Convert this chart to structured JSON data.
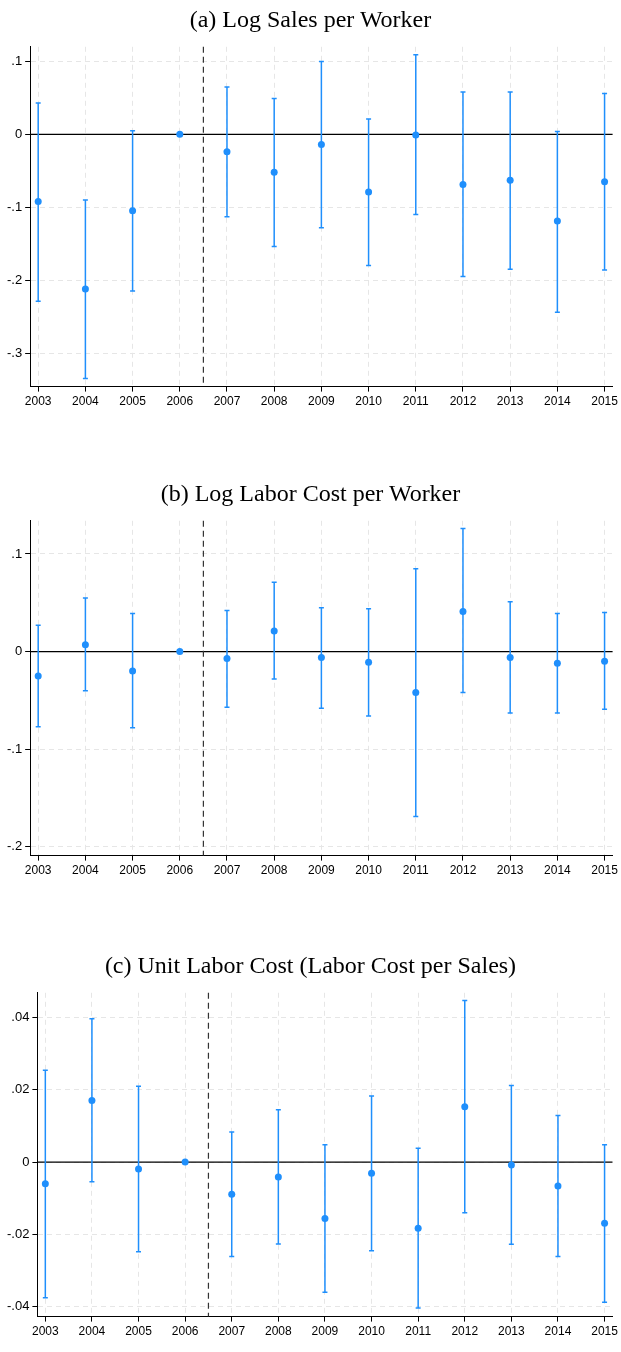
{
  "chart_data": [
    {
      "type": "scatter",
      "title": "(a) Log Sales per Worker",
      "x": [
        2003,
        2004,
        2005,
        2006,
        2007,
        2008,
        2009,
        2010,
        2011,
        2012,
        2013,
        2014,
        2015
      ],
      "series": [
        {
          "color": "#1f8ffc",
          "values": [
            -0.092,
            -0.212,
            -0.105,
            0,
            -0.024,
            -0.052,
            -0.014,
            -0.079,
            -0.001,
            -0.069,
            -0.063,
            -0.119,
            -0.065
          ],
          "errors": [
            [
              -0.229,
              0.043
            ],
            [
              -0.335,
              -0.09
            ],
            [
              -0.215,
              0.005
            ],
            null,
            [
              -0.113,
              0.065
            ],
            [
              -0.154,
              0.049
            ],
            [
              -0.128,
              0.1
            ],
            [
              -0.18,
              0.021
            ],
            [
              -0.11,
              0.109
            ],
            [
              -0.195,
              0.058
            ],
            [
              -0.185,
              0.058
            ],
            [
              -0.244,
              0.004
            ],
            [
              -0.186,
              0.056
            ]
          ]
        }
      ],
      "xlim": [
        2002.83,
        2015.17
      ],
      "xticks": [
        2003,
        2004,
        2005,
        2006,
        2007,
        2008,
        2009,
        2010,
        2011,
        2012,
        2013,
        2014,
        2015
      ],
      "ylim": [
        -0.346,
        0.12
      ],
      "yticks": [
        {
          "value": -0.3,
          "label": "-.3"
        },
        {
          "value": -0.2,
          "label": "-.2"
        },
        {
          "value": -0.1,
          "label": "-.1"
        },
        {
          "value": 0,
          "label": "0"
        },
        {
          "value": 0.1,
          "label": ".1"
        }
      ],
      "ref_lines": [
        {
          "axis": "y",
          "value": 0,
          "color": "#000000",
          "line_style": "solid"
        },
        {
          "axis": "x",
          "value": 2006.5,
          "color": "#333333",
          "line_style": "dashed"
        }
      ],
      "grid": true,
      "marker": "circle"
    },
    {
      "type": "scatter",
      "title": "(b) Log Labor Cost per Worker",
      "x": [
        2003,
        2004,
        2005,
        2006,
        2007,
        2008,
        2009,
        2010,
        2011,
        2012,
        2013,
        2014,
        2015
      ],
      "series": [
        {
          "color": "#1f8ffc",
          "values": [
            -0.025,
            0.007,
            -0.02,
            0,
            -0.007,
            0.021,
            -0.006,
            -0.011,
            -0.042,
            0.041,
            -0.006,
            -0.012,
            -0.01
          ],
          "errors": [
            [
              -0.077,
              0.027
            ],
            [
              -0.04,
              0.055
            ],
            [
              -0.078,
              0.039
            ],
            null,
            [
              -0.057,
              0.042
            ],
            [
              -0.028,
              0.071
            ],
            [
              -0.058,
              0.045
            ],
            [
              -0.066,
              0.044
            ],
            [
              -0.169,
              0.085
            ],
            [
              -0.042,
              0.126
            ],
            [
              -0.063,
              0.051
            ],
            [
              -0.063,
              0.039
            ],
            [
              -0.059,
              0.04
            ]
          ]
        }
      ],
      "xlim": [
        2002.83,
        2015.17
      ],
      "xticks": [
        2003,
        2004,
        2005,
        2006,
        2007,
        2008,
        2009,
        2010,
        2011,
        2012,
        2013,
        2014,
        2015
      ],
      "ylim": [
        -0.209,
        0.134
      ],
      "yticks": [
        {
          "value": -0.2,
          "label": "-.2"
        },
        {
          "value": -0.1,
          "label": "-.1"
        },
        {
          "value": 0,
          "label": "0"
        },
        {
          "value": 0.1,
          "label": ".1"
        }
      ],
      "ref_lines": [
        {
          "axis": "y",
          "value": 0,
          "color": "#000000",
          "line_style": "solid"
        },
        {
          "axis": "x",
          "value": 2006.5,
          "color": "#333333",
          "line_style": "dashed"
        }
      ],
      "grid": true,
      "marker": "circle"
    },
    {
      "type": "scatter",
      "title": "(c) Unit Labor Cost (Labor Cost per Sales)",
      "x": [
        2003,
        2004,
        2005,
        2006,
        2007,
        2008,
        2009,
        2010,
        2011,
        2012,
        2013,
        2014,
        2015
      ],
      "series": [
        {
          "color": "#1f8ffc",
          "values": [
            -0.006,
            0.017,
            -0.0019,
            0,
            -0.0089,
            -0.0041,
            -0.0156,
            -0.0031,
            -0.0183,
            0.0153,
            -0.0008,
            -0.0066,
            -0.0169
          ],
          "errors": [
            [
              -0.0375,
              0.0254
            ],
            [
              -0.0054,
              0.0396
            ],
            [
              -0.0248,
              0.021
            ],
            null,
            [
              -0.0261,
              0.0083
            ],
            [
              -0.0226,
              0.0145
            ],
            [
              -0.036,
              0.0048
            ],
            [
              -0.0245,
              0.0183
            ],
            [
              -0.0403,
              0.0038
            ],
            [
              -0.014,
              0.0447
            ],
            [
              -0.0227,
              0.0212
            ],
            [
              -0.0261,
              0.0129
            ],
            [
              -0.0387,
              0.0048
            ]
          ]
        }
      ],
      "xlim": [
        2002.83,
        2015.17
      ],
      "xticks": [
        2003,
        2004,
        2005,
        2006,
        2007,
        2008,
        2009,
        2010,
        2011,
        2012,
        2013,
        2014,
        2015
      ],
      "ylim": [
        -0.0427,
        0.0468
      ],
      "yticks": [
        {
          "value": -0.04,
          "label": "-.04"
        },
        {
          "value": -0.02,
          "label": "-.02"
        },
        {
          "value": 0,
          "label": "0"
        },
        {
          "value": 0.02,
          "label": ".02"
        },
        {
          "value": 0.04,
          "label": ".04"
        }
      ],
      "ref_lines": [
        {
          "axis": "y",
          "value": 0,
          "color": "#000000",
          "line_style": "solid"
        },
        {
          "axis": "x",
          "value": 2006.5,
          "color": "#333333",
          "line_style": "dashed"
        }
      ],
      "grid": true,
      "marker": "circle"
    }
  ]
}
